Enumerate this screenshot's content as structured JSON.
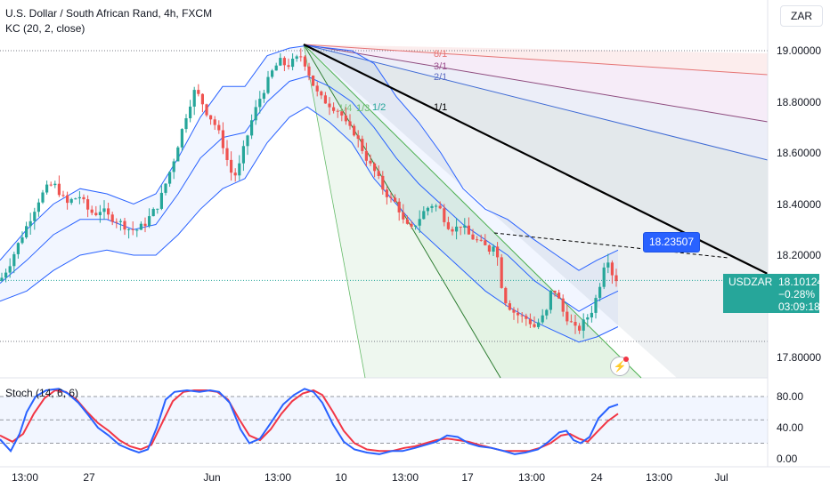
{
  "legend": {
    "title": "U.S. Dollar / South African Rand, 4h, FXCM",
    "indicator": "KC (20, 2, close)",
    "stoch": "Stoch (14, 6, 6)"
  },
  "currency_button": "ZAR",
  "price_tag": {
    "symbol": "USDZAR",
    "price": "18.10124",
    "change": "−0.28%",
    "countdown": "03:09:18"
  },
  "cursor_badge": "18.23507",
  "fan_labels": [
    "8/1",
    "3/1",
    "2/1",
    "1/1",
    "1/2",
    "1/3",
    "1/4"
  ],
  "alert_icon": "lightning-alert-icon",
  "colors": {
    "up": "#26a69a",
    "down": "#ef5350",
    "keltner": "#2962ff",
    "stoch_k": "#2962ff",
    "stoch_d": "#f23645",
    "trendline": "#000000"
  },
  "chart_data": [
    {
      "type": "candlestick",
      "title": "U.S. Dollar / South African Rand, 4h, FXCM",
      "y_ticks": [
        "19.00000",
        "18.80000",
        "18.60000",
        "18.40000",
        "18.20000",
        "17.80000"
      ],
      "x_ticks": [
        "13:00",
        "27",
        "Jun",
        "13:00",
        "10",
        "13:00",
        "17",
        "13:00",
        "24",
        "13:00",
        "Jul"
      ],
      "ylim": [
        17.72,
        19.18
      ],
      "grid": false,
      "close_path": [
        [
          0,
          18.1
        ],
        [
          10,
          18.16
        ],
        [
          20,
          18.24
        ],
        [
          28,
          18.3
        ],
        [
          36,
          18.36
        ],
        [
          44,
          18.42
        ],
        [
          52,
          18.46
        ],
        [
          60,
          18.48
        ],
        [
          68,
          18.44
        ],
        [
          75,
          18.4
        ],
        [
          82,
          18.42
        ],
        [
          90,
          18.43
        ],
        [
          98,
          18.38
        ],
        [
          106,
          18.36
        ],
        [
          114,
          18.38
        ],
        [
          122,
          18.35
        ],
        [
          130,
          18.34
        ],
        [
          138,
          18.32
        ],
        [
          146,
          18.3
        ],
        [
          154,
          18.3
        ],
        [
          162,
          18.32
        ],
        [
          170,
          18.36
        ],
        [
          178,
          18.4
        ],
        [
          186,
          18.48
        ],
        [
          194,
          18.56
        ],
        [
          202,
          18.66
        ],
        [
          210,
          18.76
        ],
        [
          218,
          18.84
        ],
        [
          224,
          18.82
        ],
        [
          232,
          18.76
        ],
        [
          240,
          18.72
        ],
        [
          248,
          18.66
        ],
        [
          256,
          18.56
        ],
        [
          262,
          18.5
        ],
        [
          268,
          18.54
        ],
        [
          274,
          18.62
        ],
        [
          282,
          18.72
        ],
        [
          290,
          18.8
        ],
        [
          298,
          18.86
        ],
        [
          306,
          18.92
        ],
        [
          314,
          18.96
        ],
        [
          322,
          18.94
        ],
        [
          330,
          18.96
        ],
        [
          338,
          18.98
        ],
        [
          344,
          18.94
        ],
        [
          350,
          18.88
        ],
        [
          358,
          18.82
        ],
        [
          366,
          18.8
        ],
        [
          374,
          18.78
        ],
        [
          382,
          18.76
        ],
        [
          390,
          18.7
        ],
        [
          398,
          18.68
        ],
        [
          406,
          18.62
        ],
        [
          414,
          18.56
        ],
        [
          422,
          18.52
        ],
        [
          430,
          18.46
        ],
        [
          438,
          18.42
        ],
        [
          446,
          18.4
        ],
        [
          454,
          18.32
        ],
        [
          462,
          18.3
        ],
        [
          470,
          18.34
        ],
        [
          478,
          18.38
        ],
        [
          486,
          18.4
        ],
        [
          494,
          18.38
        ],
        [
          502,
          18.32
        ],
        [
          510,
          18.3
        ],
        [
          518,
          18.32
        ],
        [
          526,
          18.28
        ],
        [
          534,
          18.26
        ],
        [
          542,
          18.24
        ],
        [
          550,
          18.22
        ],
        [
          556,
          18.26
        ],
        [
          562,
          18.1
        ],
        [
          568,
          18.02
        ],
        [
          576,
          17.98
        ],
        [
          584,
          17.96
        ],
        [
          592,
          17.95
        ],
        [
          600,
          17.92
        ],
        [
          608,
          17.95
        ],
        [
          614,
          17.98
        ],
        [
          620,
          18.08
        ],
        [
          626,
          18.04
        ],
        [
          632,
          17.98
        ],
        [
          640,
          17.94
        ],
        [
          648,
          17.9
        ],
        [
          656,
          17.94
        ],
        [
          664,
          17.98
        ],
        [
          670,
          18.04
        ],
        [
          676,
          18.12
        ],
        [
          680,
          18.2
        ],
        [
          684,
          18.18
        ],
        [
          688,
          18.12
        ],
        [
          694,
          18.1
        ]
      ],
      "keltner_upper_path": [
        [
          0,
          18.18
        ],
        [
          30,
          18.3
        ],
        [
          60,
          18.4
        ],
        [
          90,
          18.46
        ],
        [
          120,
          18.44
        ],
        [
          150,
          18.4
        ],
        [
          175,
          18.44
        ],
        [
          200,
          18.58
        ],
        [
          225,
          18.74
        ],
        [
          250,
          18.86
        ],
        [
          275,
          18.86
        ],
        [
          300,
          18.98
        ],
        [
          325,
          19.01
        ],
        [
          345,
          19.02
        ],
        [
          370,
          19.01
        ],
        [
          395,
          19.0
        ],
        [
          420,
          18.95
        ],
        [
          445,
          18.82
        ],
        [
          470,
          18.72
        ],
        [
          495,
          18.6
        ],
        [
          520,
          18.46
        ],
        [
          545,
          18.38
        ],
        [
          570,
          18.34
        ],
        [
          600,
          18.26
        ],
        [
          625,
          18.2
        ],
        [
          650,
          18.14
        ],
        [
          670,
          18.18
        ],
        [
          694,
          18.22
        ]
      ],
      "keltner_middle_path": [
        [
          0,
          18.09
        ],
        [
          30,
          18.18
        ],
        [
          60,
          18.28
        ],
        [
          90,
          18.34
        ],
        [
          120,
          18.34
        ],
        [
          150,
          18.3
        ],
        [
          175,
          18.32
        ],
        [
          200,
          18.44
        ],
        [
          225,
          18.58
        ],
        [
          250,
          18.66
        ],
        [
          275,
          18.68
        ],
        [
          300,
          18.8
        ],
        [
          325,
          18.88
        ],
        [
          345,
          18.9
        ],
        [
          370,
          18.86
        ],
        [
          395,
          18.8
        ],
        [
          420,
          18.7
        ],
        [
          445,
          18.58
        ],
        [
          470,
          18.48
        ],
        [
          495,
          18.4
        ],
        [
          520,
          18.32
        ],
        [
          545,
          18.26
        ],
        [
          570,
          18.2
        ],
        [
          600,
          18.1
        ],
        [
          625,
          18.04
        ],
        [
          650,
          17.98
        ],
        [
          670,
          18.02
        ],
        [
          694,
          18.06
        ]
      ],
      "keltner_lower_path": [
        [
          0,
          18.02
        ],
        [
          30,
          18.06
        ],
        [
          60,
          18.14
        ],
        [
          90,
          18.2
        ],
        [
          120,
          18.22
        ],
        [
          150,
          18.2
        ],
        [
          175,
          18.2
        ],
        [
          200,
          18.28
        ],
        [
          225,
          18.38
        ],
        [
          250,
          18.46
        ],
        [
          275,
          18.5
        ],
        [
          300,
          18.64
        ],
        [
          325,
          18.74
        ],
        [
          345,
          18.78
        ],
        [
          370,
          18.72
        ],
        [
          395,
          18.64
        ],
        [
          420,
          18.5
        ],
        [
          445,
          18.4
        ],
        [
          470,
          18.3
        ],
        [
          495,
          18.22
        ],
        [
          520,
          18.14
        ],
        [
          545,
          18.06
        ],
        [
          570,
          18.0
        ],
        [
          600,
          17.94
        ],
        [
          625,
          17.9
        ],
        [
          650,
          17.86
        ],
        [
          670,
          17.88
        ],
        [
          694,
          17.92
        ]
      ],
      "last_price": 18.10124,
      "cursor_value": 18.23507
    },
    {
      "type": "line",
      "title": "Stoch (14, 6, 6)",
      "y_ticks": [
        "80.00",
        "40.00",
        "0.00"
      ],
      "ylim": [
        -5,
        100
      ],
      "levels": [
        80,
        20
      ],
      "series": [
        {
          "values_path": [
            [
              0,
              25
            ],
            [
              12,
              10
            ],
            [
              22,
              32
            ],
            [
              30,
              60
            ],
            [
              40,
              80
            ],
            [
              52,
              88
            ],
            [
              66,
              90
            ],
            [
              76,
              84
            ],
            [
              88,
              72
            ],
            [
              100,
              55
            ],
            [
              110,
              40
            ],
            [
              122,
              30
            ],
            [
              134,
              18
            ],
            [
              146,
              12
            ],
            [
              156,
              8
            ],
            [
              166,
              12
            ],
            [
              176,
              40
            ],
            [
              186,
              76
            ],
            [
              196,
              86
            ],
            [
              210,
              88
            ],
            [
              224,
              86
            ],
            [
              236,
              88
            ],
            [
              246,
              86
            ],
            [
              258,
              72
            ],
            [
              270,
              38
            ],
            [
              280,
              20
            ],
            [
              292,
              26
            ],
            [
              304,
              46
            ],
            [
              318,
              70
            ],
            [
              330,
              82
            ],
            [
              342,
              90
            ],
            [
              352,
              86
            ],
            [
              362,
              72
            ],
            [
              374,
              44
            ],
            [
              386,
              22
            ],
            [
              398,
              12
            ],
            [
              412,
              8
            ],
            [
              426,
              6
            ],
            [
              440,
              10
            ],
            [
              452,
              10
            ],
            [
              466,
              14
            ],
            [
              478,
              18
            ],
            [
              490,
              22
            ],
            [
              502,
              30
            ],
            [
              514,
              28
            ],
            [
              526,
              20
            ],
            [
              538,
              16
            ],
            [
              552,
              14
            ],
            [
              566,
              10
            ],
            [
              578,
              6
            ],
            [
              590,
              8
            ],
            [
              604,
              12
            ],
            [
              616,
              22
            ],
            [
              628,
              34
            ],
            [
              636,
              36
            ],
            [
              644,
              24
            ],
            [
              652,
              20
            ],
            [
              662,
              28
            ],
            [
              672,
              52
            ],
            [
              684,
              66
            ],
            [
              694,
              70
            ]
          ]
        },
        {
          "values_path": [
            [
              0,
              30
            ],
            [
              14,
              22
            ],
            [
              26,
              32
            ],
            [
              38,
              58
            ],
            [
              50,
              78
            ],
            [
              62,
              88
            ],
            [
              74,
              86
            ],
            [
              86,
              76
            ],
            [
              98,
              60
            ],
            [
              110,
              46
            ],
            [
              122,
              36
            ],
            [
              134,
              24
            ],
            [
              146,
              16
            ],
            [
              158,
              12
            ],
            [
              170,
              18
            ],
            [
              182,
              46
            ],
            [
              194,
              74
            ],
            [
              206,
              86
            ],
            [
              218,
              88
            ],
            [
              232,
              88
            ],
            [
              244,
              86
            ],
            [
              256,
              76
            ],
            [
              268,
              52
            ],
            [
              280,
              30
            ],
            [
              292,
              24
            ],
            [
              304,
              38
            ],
            [
              316,
              58
            ],
            [
              328,
              74
            ],
            [
              340,
              84
            ],
            [
              352,
              88
            ],
            [
              362,
              82
            ],
            [
              374,
              60
            ],
            [
              386,
              36
            ],
            [
              398,
              20
            ],
            [
              412,
              12
            ],
            [
              426,
              10
            ],
            [
              440,
              10
            ],
            [
              454,
              14
            ],
            [
              466,
              16
            ],
            [
              478,
              20
            ],
            [
              490,
              24
            ],
            [
              502,
              26
            ],
            [
              514,
              24
            ],
            [
              526,
              22
            ],
            [
              538,
              18
            ],
            [
              552,
              14
            ],
            [
              566,
              10
            ],
            [
              580,
              10
            ],
            [
              594,
              10
            ],
            [
              606,
              14
            ],
            [
              618,
              20
            ],
            [
              630,
              30
            ],
            [
              640,
              32
            ],
            [
              650,
              26
            ],
            [
              660,
              22
            ],
            [
              670,
              34
            ],
            [
              682,
              48
            ],
            [
              694,
              58
            ]
          ]
        }
      ]
    }
  ]
}
